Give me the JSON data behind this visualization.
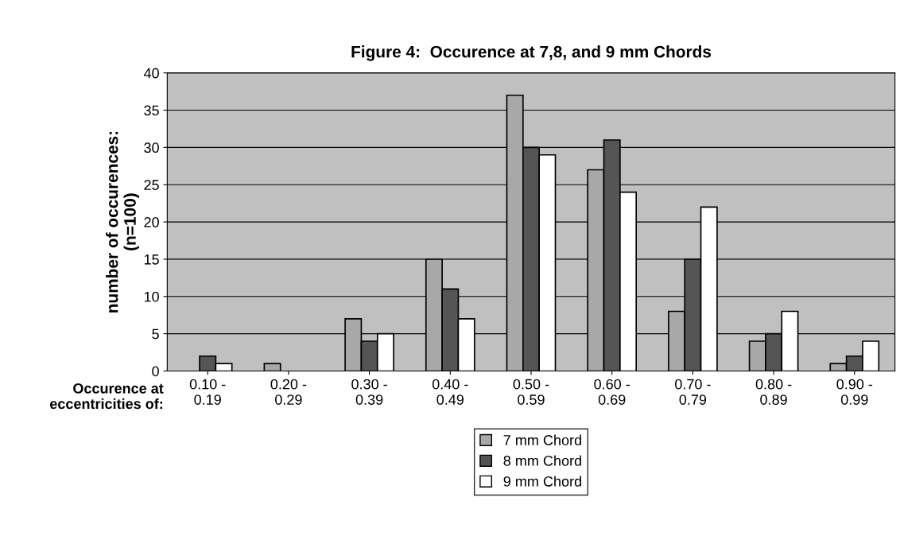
{
  "chart_data": {
    "type": "bar",
    "title": "Figure 4:  Occurence at 7,8, and 9 mm Chords",
    "xlabel": "Occurence at\neccentricities of:",
    "ylabel": "number of occurences:\n(n=100)",
    "categories": [
      "0.10 -\n0.19",
      "0.20 -\n0.29",
      "0.30 -\n0.39",
      "0.40 -\n0.49",
      "0.50 -\n0.59",
      "0.60 -\n0.69",
      "0.70 -\n0.79",
      "0.80 -\n0.89",
      "0.90 -\n0.99"
    ],
    "series": [
      {
        "name": "7 mm Chord",
        "color": "#a8a8a8",
        "values": [
          0,
          1,
          7,
          15,
          37,
          27,
          8,
          4,
          1
        ]
      },
      {
        "name": "8 mm Chord",
        "color": "#555555",
        "values": [
          2,
          0,
          4,
          11,
          30,
          31,
          15,
          5,
          2
        ]
      },
      {
        "name": "9 mm Chord",
        "color": "#ffffff",
        "values": [
          1,
          0,
          5,
          7,
          29,
          24,
          22,
          8,
          4
        ]
      }
    ],
    "ylim": [
      0,
      40
    ],
    "yticks": [
      0,
      5,
      10,
      15,
      20,
      25,
      30,
      35,
      40
    ],
    "grid": "y",
    "legend": "bottom"
  }
}
